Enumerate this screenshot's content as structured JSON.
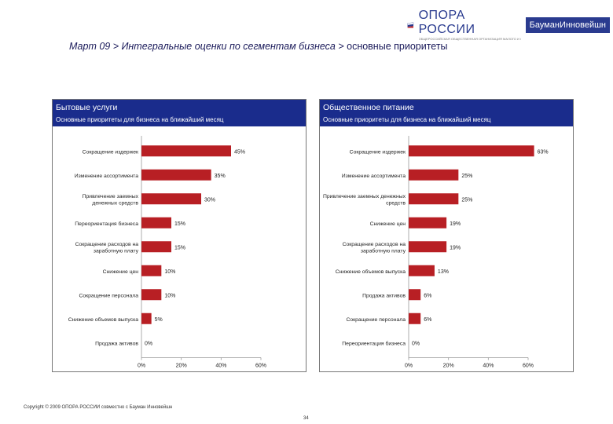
{
  "header": {
    "logo_name": "ОПОРА РОССИИ",
    "logo_sub": "ОБЩЕРОССИЙСКАЯ ОБЩЕСТВЕННАЯ ОРГАНИЗАЦИЯ МАЛОГО И СРЕДНЕГО ПРЕДПРИНИМАТЕЛЬСТВА",
    "partner": "БауманИнновейшн",
    "colors": {
      "brand_blue": "#2a3b8f",
      "brand_red": "#c0272d"
    }
  },
  "page_title": {
    "crumb": "Март 09 > Интегральные оценки по сегментам бизнеса >",
    "current": " основные приоритеты"
  },
  "panels": {
    "left": {
      "title": "Бытовые услуги",
      "subtitle": "Основные приоритеты для бизнеса на ближайший месяц"
    },
    "right": {
      "title": "Общественное питание",
      "subtitle": "Основные приоритеты для бизнеса на ближайший месяц"
    }
  },
  "chart_data": [
    {
      "type": "bar",
      "orientation": "horizontal",
      "title": "Бытовые услуги",
      "categories": [
        [
          "Сокращение издержек"
        ],
        [
          "Изменение ассортимента"
        ],
        [
          "Привлечение заемных",
          "денежных средств"
        ],
        [
          "Переориентация бизнеса"
        ],
        [
          "Сокращение расходов на",
          "заработную плату"
        ],
        [
          "Снижение цен"
        ],
        [
          "Сокращение персонала"
        ],
        [
          "Снижение объемов выпуска"
        ],
        [
          "Продажа активов"
        ]
      ],
      "values": [
        45,
        35,
        30,
        15,
        15,
        10,
        10,
        5,
        0
      ],
      "value_labels": [
        "45%",
        "35%",
        "30%",
        "15%",
        "15%",
        "10%",
        "10%",
        "5%",
        "0%"
      ],
      "xlim": [
        0,
        60
      ],
      "xticks": [
        0,
        20,
        40,
        60
      ],
      "xtick_labels": [
        "0%",
        "20%",
        "40%",
        "60%"
      ],
      "bar_color": "#b81f24"
    },
    {
      "type": "bar",
      "orientation": "horizontal",
      "title": "Общественное питание",
      "categories": [
        [
          "Сокращение издержек"
        ],
        [
          "Изменение ассортимента"
        ],
        [
          "Привлечение заемных денежных",
          "средств"
        ],
        [
          "Снижение цен"
        ],
        [
          "Сокращение расходов на",
          "заработную плату"
        ],
        [
          "Снижение объемов выпуска"
        ],
        [
          "Продажа активов"
        ],
        [
          "Сокращение персонала"
        ],
        [
          "Переориентация бизнеса"
        ]
      ],
      "values": [
        63,
        25,
        25,
        19,
        19,
        13,
        6,
        6,
        0
      ],
      "value_labels": [
        "63%",
        "25%",
        "25%",
        "19%",
        "19%",
        "13%",
        "6%",
        "6%",
        "0%"
      ],
      "xlim": [
        0,
        60
      ],
      "xticks": [
        0,
        20,
        40,
        60
      ],
      "xtick_labels": [
        "0%",
        "20%",
        "40%",
        "60%"
      ],
      "bar_color": "#b81f24"
    }
  ],
  "footer": {
    "copyright": "Copyright © 2009 ОПОРА РОССИИ совместно с Бауман Инновейшн",
    "page_number": "34"
  }
}
